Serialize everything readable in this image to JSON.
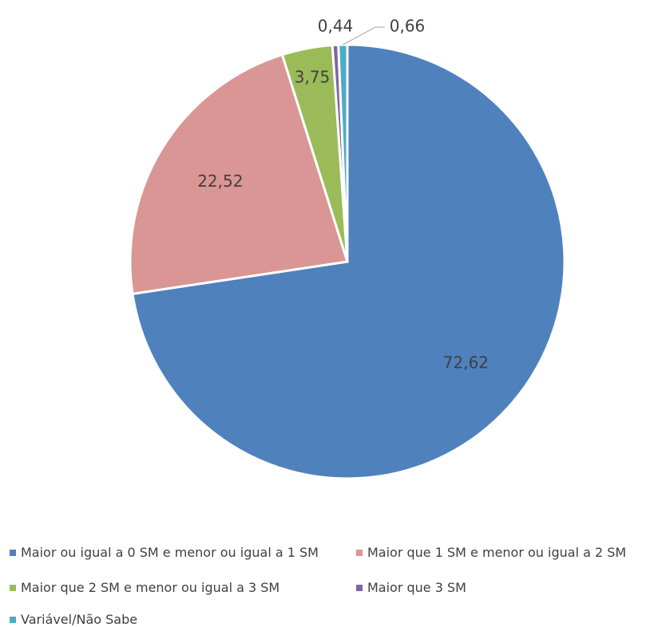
{
  "chart_data": {
    "type": "pie",
    "title": "",
    "start_angle_deg": 0,
    "direction": "clockwise",
    "legend_position": "bottom",
    "slices": [
      {
        "label": "Maior ou igual a 0  SM e menor ou igual a 1 SM",
        "value": 72.62,
        "value_label": "72,62",
        "color": "#4F81BD"
      },
      {
        "label": "Maior que 1 SM e menor ou igual a 2 SM",
        "value": 22.52,
        "value_label": "22,52",
        "color": "#D99694"
      },
      {
        "label": "Maior que 2 SM e menor ou igual a 3 SM",
        "value": 3.75,
        "value_label": "3,75",
        "color": "#9BBB59"
      },
      {
        "label": "Maior que 3 SM",
        "value": 0.44,
        "value_label": "0,44",
        "color": "#8064A2"
      },
      {
        "label": "Variável/Não Sabe",
        "value": 0.66,
        "value_label": "0,66",
        "color": "#4BACC6"
      }
    ]
  }
}
